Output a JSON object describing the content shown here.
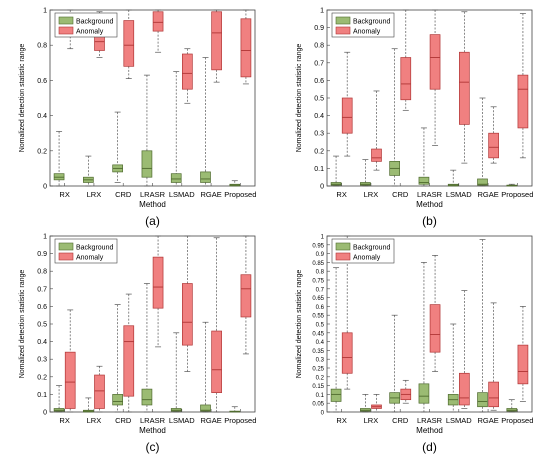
{
  "colors": {
    "background_fill": "#9bbb73",
    "background_edge": "#4f6b2e",
    "anomaly_fill": "#f08080",
    "anomaly_edge": "#b03535",
    "whisker": "#555555",
    "axis": "#444444"
  },
  "chart_data": [
    {
      "type": "box",
      "panel_label": "(a)",
      "xlabel": "Method",
      "ylabel": "Nomalized detection statistic range",
      "ylim": [
        0,
        1
      ],
      "yticks": [
        0,
        0.2,
        0.4,
        0.6,
        0.8,
        1
      ],
      "legend": [
        "Background",
        "Anomaly"
      ],
      "legend_position": "top-left",
      "categories": [
        "RX",
        "LRX",
        "CRD",
        "LRASR",
        "LSMAD",
        "RGAE",
        "Proposed"
      ],
      "series": [
        {
          "name": "Background",
          "boxes": [
            {
              "min": 0.0,
              "q1": 0.035,
              "median": 0.05,
              "q3": 0.07,
              "max": 0.31
            },
            {
              "min": 0.0,
              "q1": 0.02,
              "median": 0.035,
              "q3": 0.05,
              "max": 0.17
            },
            {
              "min": 0.02,
              "q1": 0.08,
              "median": 0.1,
              "q3": 0.12,
              "max": 0.42
            },
            {
              "min": 0.0,
              "q1": 0.05,
              "median": 0.1,
              "q3": 0.2,
              "max": 0.63
            },
            {
              "min": 0.0,
              "q1": 0.02,
              "median": 0.04,
              "q3": 0.07,
              "max": 0.65
            },
            {
              "min": 0.0,
              "q1": 0.02,
              "median": 0.04,
              "q3": 0.08,
              "max": 0.73
            },
            {
              "min": 0.0,
              "q1": 0.0,
              "median": 0.005,
              "q3": 0.01,
              "max": 0.03
            }
          ]
        },
        {
          "name": "Anomaly",
          "boxes": [
            {
              "min": 0.78,
              "q1": 0.85,
              "median": 0.9,
              "q3": 0.97,
              "max": 1.0
            },
            {
              "min": 0.73,
              "q1": 0.77,
              "median": 0.82,
              "q3": 0.92,
              "max": 0.99
            },
            {
              "min": 0.61,
              "q1": 0.68,
              "median": 0.8,
              "q3": 0.94,
              "max": 1.0
            },
            {
              "min": 0.76,
              "q1": 0.88,
              "median": 0.93,
              "q3": 0.99,
              "max": 1.0
            },
            {
              "min": 0.47,
              "q1": 0.55,
              "median": 0.64,
              "q3": 0.75,
              "max": 0.78
            },
            {
              "min": 0.59,
              "q1": 0.66,
              "median": 0.87,
              "q3": 0.99,
              "max": 1.0
            },
            {
              "min": 0.58,
              "q1": 0.62,
              "median": 0.77,
              "q3": 0.95,
              "max": 1.0
            }
          ]
        }
      ]
    },
    {
      "type": "box",
      "panel_label": "(b)",
      "xlabel": "Method",
      "ylabel": "Nomalized detection statistic range",
      "ylim": [
        0,
        1
      ],
      "yticks": [
        0,
        0.1,
        0.2,
        0.3,
        0.4,
        0.5,
        0.6,
        0.7,
        0.8,
        0.9,
        1
      ],
      "legend": [
        "Background",
        "Anomaly"
      ],
      "legend_position": "top-left",
      "categories": [
        "RX",
        "LRX",
        "CRD",
        "LRASR",
        "LSMAD",
        "RGAE",
        "Proposed"
      ],
      "series": [
        {
          "name": "Background",
          "boxes": [
            {
              "min": 0.0,
              "q1": 0.005,
              "median": 0.01,
              "q3": 0.02,
              "max": 0.17
            },
            {
              "min": 0.0,
              "q1": 0.005,
              "median": 0.01,
              "q3": 0.02,
              "max": 0.15
            },
            {
              "min": 0.0,
              "q1": 0.06,
              "median": 0.1,
              "q3": 0.14,
              "max": 0.78
            },
            {
              "min": 0.0,
              "q1": 0.01,
              "median": 0.02,
              "q3": 0.05,
              "max": 0.33
            },
            {
              "min": 0.0,
              "q1": 0.0,
              "median": 0.005,
              "q3": 0.01,
              "max": 0.09
            },
            {
              "min": 0.0,
              "q1": 0.005,
              "median": 0.01,
              "q3": 0.04,
              "max": 0.5
            },
            {
              "min": 0.0,
              "q1": 0.0,
              "median": 0.002,
              "q3": 0.005,
              "max": 0.01
            }
          ]
        },
        {
          "name": "Anomaly",
          "boxes": [
            {
              "min": 0.17,
              "q1": 0.3,
              "median": 0.39,
              "q3": 0.5,
              "max": 0.76
            },
            {
              "min": 0.09,
              "q1": 0.14,
              "median": 0.16,
              "q3": 0.21,
              "max": 0.54
            },
            {
              "min": 0.43,
              "q1": 0.49,
              "median": 0.58,
              "q3": 0.73,
              "max": 1.0
            },
            {
              "min": 0.23,
              "q1": 0.55,
              "median": 0.73,
              "q3": 0.86,
              "max": 1.0
            },
            {
              "min": 0.13,
              "q1": 0.35,
              "median": 0.59,
              "q3": 0.76,
              "max": 0.99
            },
            {
              "min": 0.13,
              "q1": 0.16,
              "median": 0.22,
              "q3": 0.3,
              "max": 0.45
            },
            {
              "min": 0.16,
              "q1": 0.33,
              "median": 0.55,
              "q3": 0.63,
              "max": 0.98
            }
          ]
        }
      ]
    },
    {
      "type": "box",
      "panel_label": "(c)",
      "xlabel": "Method",
      "ylabel": "Nomalized detection statistic range",
      "ylim": [
        0,
        1
      ],
      "yticks": [
        0,
        0.1,
        0.2,
        0.3,
        0.4,
        0.5,
        0.6,
        0.7,
        0.8,
        0.9,
        1
      ],
      "legend": [
        "Background",
        "Anomaly"
      ],
      "legend_position": "top-left",
      "categories": [
        "RX",
        "LRX",
        "CRD",
        "LRASR",
        "LSMAD",
        "RGAE",
        "Proposed"
      ],
      "series": [
        {
          "name": "Background",
          "boxes": [
            {
              "min": 0.0,
              "q1": 0.005,
              "median": 0.01,
              "q3": 0.02,
              "max": 0.15
            },
            {
              "min": 0.0,
              "q1": 0.0,
              "median": 0.005,
              "q3": 0.01,
              "max": 0.08
            },
            {
              "min": 0.0,
              "q1": 0.04,
              "median": 0.06,
              "q3": 0.1,
              "max": 0.61
            },
            {
              "min": 0.0,
              "q1": 0.04,
              "median": 0.07,
              "q3": 0.13,
              "max": 0.73
            },
            {
              "min": 0.0,
              "q1": 0.005,
              "median": 0.01,
              "q3": 0.02,
              "max": 0.45
            },
            {
              "min": 0.0,
              "q1": 0.005,
              "median": 0.01,
              "q3": 0.04,
              "max": 0.51
            },
            {
              "min": 0.0,
              "q1": 0.0,
              "median": 0.002,
              "q3": 0.005,
              "max": 0.03
            }
          ]
        },
        {
          "name": "Anomaly",
          "boxes": [
            {
              "min": 0.0,
              "q1": 0.02,
              "median": 0.17,
              "q3": 0.34,
              "max": 0.58
            },
            {
              "min": 0.0,
              "q1": 0.02,
              "median": 0.12,
              "q3": 0.21,
              "max": 0.26
            },
            {
              "min": 0.0,
              "q1": 0.09,
              "median": 0.4,
              "q3": 0.49,
              "max": 0.67
            },
            {
              "min": 0.37,
              "q1": 0.59,
              "median": 0.71,
              "q3": 0.88,
              "max": 1.0
            },
            {
              "min": 0.23,
              "q1": 0.38,
              "median": 0.51,
              "q3": 0.73,
              "max": 1.0
            },
            {
              "min": 0.0,
              "q1": 0.11,
              "median": 0.24,
              "q3": 0.46,
              "max": 0.99
            },
            {
              "min": 0.33,
              "q1": 0.54,
              "median": 0.7,
              "q3": 0.78,
              "max": 1.0
            }
          ]
        }
      ]
    },
    {
      "type": "box",
      "panel_label": "(d)",
      "xlabel": "Method",
      "ylabel": "Nomalized detection statistic range",
      "ylim": [
        0,
        1
      ],
      "yticks": [
        0,
        0.05,
        0.1,
        0.15,
        0.2,
        0.25,
        0.3,
        0.35,
        0.4,
        0.45,
        0.5,
        0.55,
        0.6,
        0.65,
        0.7,
        0.75,
        0.8,
        0.85,
        0.9,
        0.95,
        1
      ],
      "legend": [
        "Background",
        "Anomaly"
      ],
      "legend_position": "top-left",
      "categories": [
        "RX",
        "LRX",
        "CRD",
        "LRASR",
        "LSMAD",
        "RGAE",
        "Proposed"
      ],
      "series": [
        {
          "name": "Background",
          "boxes": [
            {
              "min": 0.0,
              "q1": 0.06,
              "median": 0.1,
              "q3": 0.13,
              "max": 0.82
            },
            {
              "min": 0.0,
              "q1": 0.005,
              "median": 0.01,
              "q3": 0.02,
              "max": 0.1
            },
            {
              "min": 0.0,
              "q1": 0.05,
              "median": 0.08,
              "q3": 0.11,
              "max": 0.55
            },
            {
              "min": 0.0,
              "q1": 0.05,
              "median": 0.09,
              "q3": 0.16,
              "max": 0.85
            },
            {
              "min": 0.0,
              "q1": 0.04,
              "median": 0.07,
              "q3": 0.1,
              "max": 0.5
            },
            {
              "min": 0.0,
              "q1": 0.03,
              "median": 0.06,
              "q3": 0.11,
              "max": 0.98
            },
            {
              "min": 0.0,
              "q1": 0.005,
              "median": 0.01,
              "q3": 0.02,
              "max": 0.07
            }
          ]
        },
        {
          "name": "Anomaly",
          "boxes": [
            {
              "min": 0.13,
              "q1": 0.22,
              "median": 0.31,
              "q3": 0.45,
              "max": 1.0
            },
            {
              "min": 0.0,
              "q1": 0.02,
              "median": 0.03,
              "q3": 0.04,
              "max": 0.1
            },
            {
              "min": 0.05,
              "q1": 0.07,
              "median": 0.1,
              "q3": 0.13,
              "max": 0.18
            },
            {
              "min": 0.23,
              "q1": 0.34,
              "median": 0.44,
              "q3": 0.61,
              "max": 0.89
            },
            {
              "min": 0.02,
              "q1": 0.04,
              "median": 0.08,
              "q3": 0.22,
              "max": 0.69
            },
            {
              "min": 0.01,
              "q1": 0.03,
              "median": 0.08,
              "q3": 0.17,
              "max": 0.62
            },
            {
              "min": 0.06,
              "q1": 0.16,
              "median": 0.23,
              "q3": 0.38,
              "max": 0.6
            }
          ]
        }
      ]
    }
  ]
}
